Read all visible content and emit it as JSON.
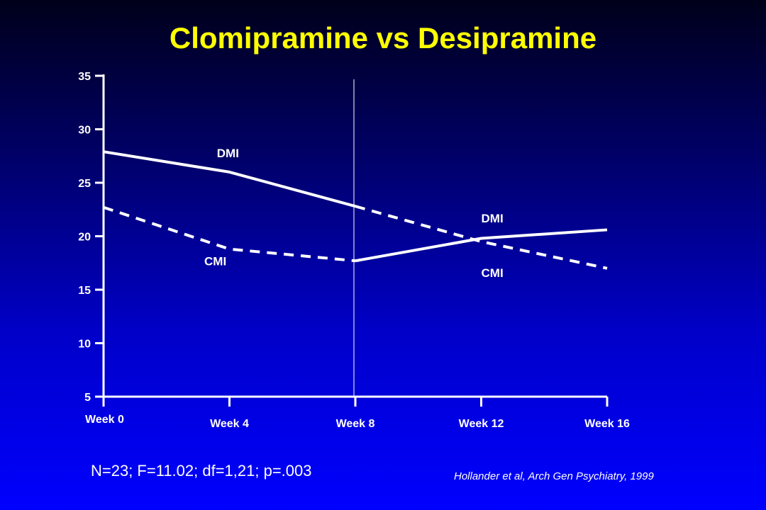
{
  "title": "Clomipramine vs Desipramine",
  "footer": {
    "stats": "N=23; F=11.02; df=1,21; p=.003",
    "citation": "Hollander et al, Arch Gen Psychiatry, 1999"
  },
  "colors": {
    "title": "#ffff00",
    "lines": "#ffffff",
    "background_top": "#00001a",
    "background_bottom": "#0000ff"
  },
  "chart_data": {
    "type": "line",
    "title": "",
    "xlabel": "",
    "ylabel": "",
    "categories": [
      "Week 0",
      "Week 4",
      "Week 8",
      "Week 12",
      "Week 16"
    ],
    "yticks": [
      5,
      10,
      15,
      20,
      25,
      30,
      35
    ],
    "ylim": [
      5,
      35
    ],
    "grid": false,
    "crossover_marker": "Week 8",
    "series": [
      {
        "name": "DMI",
        "segments": [
          {
            "style": "solid",
            "points": [
              [
                0,
                27.9
              ],
              [
                1,
                26.0
              ],
              [
                2,
                22.8
              ]
            ]
          },
          {
            "style": "dashed",
            "points": [
              [
                2,
                22.8
              ],
              [
                3,
                19.5
              ],
              [
                4,
                17.0
              ]
            ]
          }
        ]
      },
      {
        "name": "CMI",
        "segments": [
          {
            "style": "dashed",
            "points": [
              [
                0,
                22.7
              ],
              [
                1,
                18.8
              ],
              [
                2,
                17.7
              ]
            ]
          },
          {
            "style": "solid",
            "points": [
              [
                2,
                17.7
              ],
              [
                3,
                19.8
              ],
              [
                4,
                20.6
              ]
            ]
          }
        ]
      }
    ],
    "annotations": [
      {
        "text": "DMI",
        "x": 0.9,
        "y": 27.4
      },
      {
        "text": "CMI",
        "x": 0.8,
        "y": 17.3
      },
      {
        "text": "DMI",
        "x": 3.0,
        "y": 21.3
      },
      {
        "text": "CMI",
        "x": 3.0,
        "y": 16.2
      }
    ]
  }
}
